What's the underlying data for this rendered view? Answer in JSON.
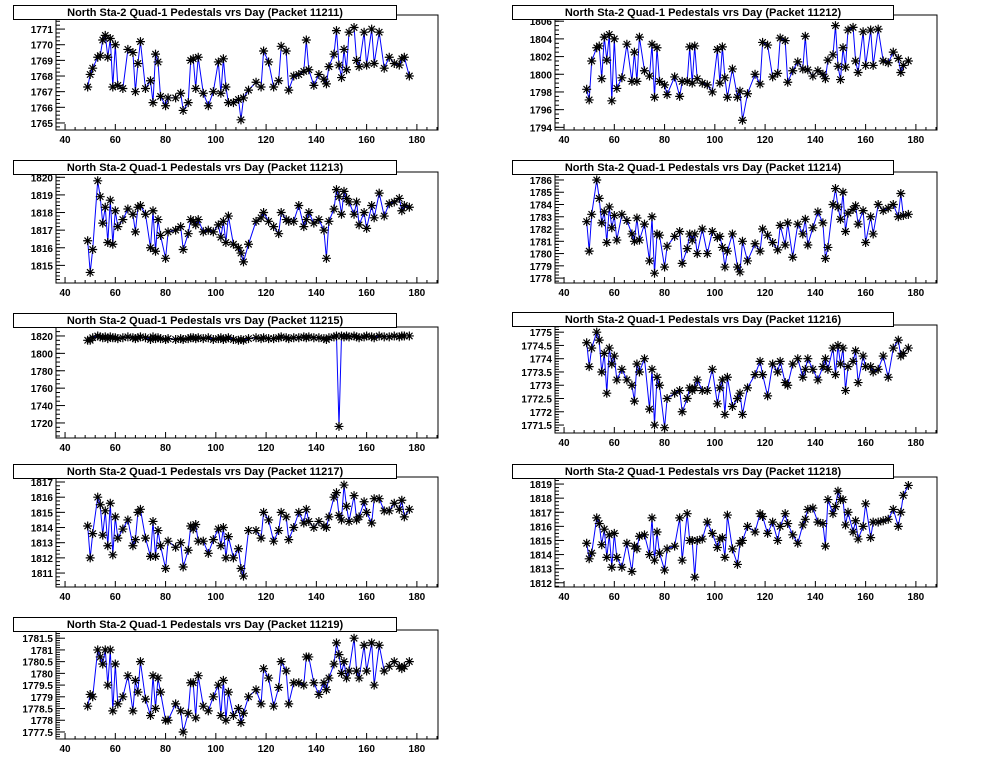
{
  "chart_data": [
    {
      "type": "line",
      "title": "North Sta-2 Quad-1 Pedestals vrs Day (Packet 11211)",
      "xlabel": "",
      "ylabel": "",
      "xlim": [
        36.4,
        188.4
      ],
      "ylim": [
        1764.55,
        1771.9
      ],
      "xticks": [
        40,
        60,
        80,
        100,
        120,
        140,
        160,
        180
      ],
      "yticks": [
        1765,
        1766,
        1767,
        1768,
        1769,
        1770,
        1771
      ],
      "yminor": 0.25,
      "y": [
        1767.3,
        1768.1,
        1768.5,
        1769.2,
        1769.3,
        1770.3,
        1770.6,
        1769.2,
        1770.4,
        1767.3,
        1770.0,
        1767.4,
        1767.2,
        1769.7,
        1769.5,
        1767.0,
        1768.8,
        1770.2,
        1767.2,
        1767.7,
        1766.3,
        1769.4,
        1768.9,
        1766.7,
        1766.1,
        1766.6,
        1766.6,
        1766.9,
        1765.8,
        1766.3,
        1769.0,
        1769.1,
        1767.2,
        1769.2,
        1766.9,
        1766.1,
        1767.0,
        1768.9,
        1766.9,
        1769.1,
        1767.3,
        1766.3,
        1766.3,
        1766.5,
        1765.2,
        1766.6,
        1767.1,
        1767.6,
        1767.3,
        1769.6,
        1768.9,
        1767.3,
        1767.7,
        1769.9,
        1769.6,
        1767.1,
        1768.0,
        1768.1,
        1768.3,
        1770.3,
        1768.4,
        1767.4,
        1768.1,
        1767.8,
        1767.5,
        1768.6,
        1769.4,
        1770.9,
        1768.7,
        1767.9,
        1769.7,
        1768.4,
        1770.8,
        1771.1,
        1769.0,
        1768.6,
        1770.8,
        1768.7,
        1771.0,
        1768.8,
        1770.8,
        1768.5,
        1769.2,
        1768.8,
        1768.7,
        1769.1,
        1769.2,
        1768.0
      ]
    },
    {
      "type": "line",
      "title": "North Sta-2 Quad-1 Pedestals vrs Day (Packet 11212)",
      "xlabel": "",
      "ylabel": "",
      "xlim": [
        36.4,
        188.4
      ],
      "ylim": [
        1793.7,
        1806.7
      ],
      "xticks": [
        40,
        60,
        80,
        100,
        120,
        140,
        160,
        180
      ],
      "yticks": [
        1794,
        1796,
        1798,
        1800,
        1802,
        1804,
        1806
      ],
      "yminor": 0.5,
      "y": [
        1798.3,
        1797.1,
        1801.5,
        1803.0,
        1803.2,
        1799.5,
        1804.2,
        1801.6,
        1804.5,
        1797.0,
        1804.0,
        1798.4,
        1799.6,
        1803.4,
        1799.2,
        1802.5,
        1799.2,
        1804.2,
        1800.4,
        1799.8,
        1803.4,
        1797.4,
        1803.0,
        1799.2,
        1798.8,
        1797.7,
        1799.7,
        1797.5,
        1799.2,
        1799.2,
        1803.1,
        1799.0,
        1803.2,
        1799.5,
        1799.0,
        1798.8,
        1798.0,
        1802.8,
        1799.0,
        1803.1,
        1799.6,
        1797.4,
        1800.6,
        1797.4,
        1798.1,
        1794.8,
        1797.8,
        1800.0,
        1798.9,
        1803.6,
        1803.3,
        1799.7,
        1800.1,
        1804.1,
        1803.8,
        1799.1,
        1800.4,
        1801.4,
        1800.6,
        1804.3,
        1800.5,
        1799.8,
        1800.4,
        1800.0,
        1799.5,
        1801.6,
        1802.2,
        1805.5,
        1800.9,
        1799.4,
        1803.0,
        1800.8,
        1805.0,
        1805.3,
        1801.5,
        1800.2,
        1804.8,
        1801.0,
        1805.0,
        1801.0,
        1805.1,
        1801.5,
        1801.3,
        1802.5,
        1801.8,
        1800.2,
        1801.0,
        1801.5
      ]
    },
    {
      "type": "line",
      "title": "North Sta-2 Quad-1 Pedestals vrs Day (Packet 11213)",
      "xlabel": "",
      "ylabel": "",
      "xlim": [
        36.4,
        188.4
      ],
      "ylim": [
        1814.0,
        1820.3
      ],
      "xticks": [
        40,
        60,
        80,
        100,
        120,
        140,
        160,
        180
      ],
      "yticks": [
        1815,
        1816,
        1817,
        1818,
        1819,
        1820
      ],
      "yminor": 0.2,
      "y": [
        1816.4,
        1814.6,
        1815.9,
        1819.8,
        1818.9,
        1817.4,
        1818.3,
        1816.3,
        1818.7,
        1816.2,
        1818.1,
        1817.2,
        1817.6,
        1818.2,
        1817.9,
        1816.9,
        1818.3,
        1818.4,
        1817.9,
        1816.0,
        1818.1,
        1815.8,
        1817.6,
        1816.7,
        1815.4,
        1816.9,
        1817.0,
        1817.2,
        1815.9,
        1816.8,
        1817.6,
        1817.5,
        1817.3,
        1817.6,
        1816.9,
        1817.0,
        1816.9,
        1817.3,
        1816.6,
        1817.5,
        1816.3,
        1817.8,
        1816.2,
        1816.0,
        1815.7,
        1815.2,
        1816.2,
        1817.5,
        1817.7,
        1818.0,
        1817.5,
        1817.2,
        1816.8,
        1818.0,
        1817.6,
        1817.5,
        1817.5,
        1818.4,
        1817.2,
        1817.6,
        1818.0,
        1817.4,
        1817.6,
        1817.0,
        1815.4,
        1817.5,
        1818.2,
        1819.3,
        1818.9,
        1817.9,
        1819.2,
        1818.8,
        1818.6,
        1817.9,
        1818.6,
        1817.3,
        1818.0,
        1817.1,
        1818.4,
        1817.7,
        1819.1,
        1817.8,
        1818.5,
        1818.6,
        1818.8,
        1818.1,
        1818.4,
        1818.3
      ]
    },
    {
      "type": "line",
      "title": "North Sta-2 Quad-1 Pedestals vrs Day (Packet 11214)",
      "xlabel": "",
      "ylabel": "",
      "xlim": [
        36.4,
        188.4
      ],
      "ylim": [
        1777.6,
        1786.65
      ],
      "xticks": [
        40,
        60,
        80,
        100,
        120,
        140,
        160,
        180
      ],
      "yticks": [
        1778,
        1779,
        1780,
        1781,
        1782,
        1783,
        1784,
        1785,
        1786
      ],
      "yminor": 0.25,
      "y": [
        1782.6,
        1780.2,
        1783.2,
        1786.0,
        1784.5,
        1782.5,
        1783.4,
        1780.9,
        1783.8,
        1782.1,
        1783.1,
        1781.1,
        1783.2,
        1782.7,
        1781.6,
        1781.0,
        1782.9,
        1781.1,
        1782.4,
        1779.4,
        1783.0,
        1778.4,
        1781.6,
        1781.5,
        1778.9,
        1780.6,
        1781.4,
        1781.8,
        1779.2,
        1780.4,
        1781.6,
        1781.1,
        1781.6,
        1780.0,
        1782.0,
        1780.0,
        1781.8,
        1781.3,
        1781.4,
        1780.5,
        1778.9,
        1780.2,
        1781.6,
        1778.9,
        1778.5,
        1781.0,
        1779.4,
        1780.8,
        1780.2,
        1782.0,
        1781.5,
        1780.9,
        1780.3,
        1782.3,
        1780.7,
        1782.5,
        1779.7,
        1782.4,
        1781.6,
        1782.8,
        1780.7,
        1782.1,
        1783.4,
        1782.5,
        1779.6,
        1780.5,
        1784.0,
        1785.3,
        1783.8,
        1782.8,
        1785.0,
        1781.8,
        1783.3,
        1783.6,
        1783.9,
        1782.4,
        1783.5,
        1780.9,
        1783.0,
        1781.6,
        1784.0,
        1783.5,
        1783.7,
        1784.0,
        1783.0,
        1784.9,
        1783.1,
        1783.2
      ]
    },
    {
      "type": "line",
      "title": "North Sta-2 Quad-1 Pedestals vrs Day (Packet 11215)",
      "xlabel": "",
      "ylabel": "",
      "xlim": [
        36.4,
        188.4
      ],
      "ylim": [
        1702.7,
        1830.3
      ],
      "xticks": [
        40,
        60,
        80,
        100,
        120,
        140,
        160,
        180
      ],
      "yticks": [
        1720,
        1740,
        1760,
        1780,
        1800,
        1820
      ],
      "yminor": 5,
      "y": [
        1815,
        1815,
        1818,
        1820,
        1819,
        1818,
        1819,
        1817,
        1819,
        1818,
        1818,
        1817,
        1818,
        1819,
        1818,
        1817,
        1818,
        1819,
        1818,
        1816,
        1819,
        1817,
        1818,
        1817,
        1816,
        1817,
        1816,
        1817,
        1816,
        1817,
        1818,
        1818,
        1817,
        1818,
        1817,
        1818,
        1816,
        1817,
        1818,
        1816,
        1817,
        1818,
        1816,
        1815,
        1816,
        1815,
        1817,
        1818,
        1817,
        1818,
        1817,
        1817,
        1818,
        1819,
        1818,
        1817,
        1818,
        1818,
        1819,
        1818,
        1819,
        1818,
        1818,
        1817,
        1816,
        1818,
        1819,
        1820,
        1716,
        1820,
        1819,
        1820,
        1819,
        1820,
        1819,
        1818,
        1819,
        1820,
        1819,
        1818,
        1820,
        1819,
        1819,
        1820,
        1819,
        1820,
        1820,
        1820
      ]
    },
    {
      "type": "line",
      "title": "North Sta-2 Quad-1 Pedestals vrs Day (Packet 11216)",
      "xlabel": "",
      "ylabel": "",
      "xlim": [
        36.4,
        188.4
      ],
      "ylim": [
        1771.2,
        1775.27
      ],
      "xticks": [
        40,
        60,
        80,
        100,
        120,
        140,
        160,
        180
      ],
      "yticks": [
        1771.5,
        1772,
        1772.5,
        1773,
        1773.5,
        1774,
        1774.5,
        1775
      ],
      "yminor": 0.1,
      "y": [
        1774.6,
        1773.7,
        1774.4,
        1775.0,
        1774.7,
        1773.5,
        1774.2,
        1772.7,
        1774.4,
        1773.8,
        1774.1,
        1773.2,
        1773.6,
        1773.2,
        1773.0,
        1772.4,
        1773.8,
        1773.5,
        1774.0,
        1772.1,
        1773.6,
        1771.5,
        1773.3,
        1773.0,
        1771.4,
        1772.5,
        1772.7,
        1772.8,
        1772.0,
        1772.5,
        1772.9,
        1772.8,
        1772.9,
        1773.2,
        1772.8,
        1772.8,
        1773.6,
        1772.3,
        1772.9,
        1773.2,
        1771.9,
        1773.3,
        1772.2,
        1772.5,
        1772.7,
        1771.9,
        1772.9,
        1773.4,
        1773.9,
        1773.4,
        1772.6,
        1773.8,
        1773.5,
        1773.9,
        1773.1,
        1773.0,
        1773.8,
        1774.0,
        1773.3,
        1773.6,
        1774.0,
        1773.6,
        1773.2,
        1773.7,
        1774.0,
        1773.6,
        1774.4,
        1773.4,
        1774.5,
        1773.8,
        1774.4,
        1772.8,
        1773.7,
        1773.9,
        1774.3,
        1773.1,
        1774.1,
        1773.7,
        1773.7,
        1773.5,
        1773.6,
        1774.1,
        1773.3,
        1774.4,
        1774.7,
        1774.1,
        1774.2,
        1774.4
      ]
    },
    {
      "type": "line",
      "title": "North Sta-2 Quad-1 Pedestals vrs Day (Packet 11217)",
      "xlabel": "",
      "ylabel": "",
      "xlim": [
        36.4,
        188.4
      ],
      "ylim": [
        1810.08,
        1817.33
      ],
      "xticks": [
        40,
        60,
        80,
        100,
        120,
        140,
        160,
        180
      ],
      "yticks": [
        1811,
        1812,
        1813,
        1814,
        1815,
        1816,
        1817
      ],
      "yminor": 0.25,
      "y": [
        1814.1,
        1812.0,
        1813.6,
        1816.0,
        1815.5,
        1813.5,
        1815.1,
        1812.8,
        1815.6,
        1812.2,
        1814.7,
        1813.3,
        1813.9,
        1814.5,
        1812.8,
        1813.2,
        1815.0,
        1815.2,
        1813.3,
        1812.1,
        1814.4,
        1812.1,
        1813.8,
        1812.8,
        1811.3,
        1813.1,
        1812.7,
        1813.0,
        1811.4,
        1812.5,
        1814.1,
        1813.9,
        1814.2,
        1813.1,
        1813.1,
        1812.3,
        1813.2,
        1813.9,
        1812.8,
        1814.0,
        1812.0,
        1813.4,
        1812.0,
        1812.6,
        1811.3,
        1810.8,
        1813.8,
        1813.8,
        1813.3,
        1815.0,
        1814.5,
        1813.1,
        1813.8,
        1815.0,
        1814.7,
        1813.2,
        1814.0,
        1815.0,
        1814.3,
        1815.2,
        1814.4,
        1814.0,
        1814.4,
        1814.1,
        1814.0,
        1814.7,
        1816.0,
        1816.3,
        1814.8,
        1814.5,
        1816.8,
        1815.4,
        1814.4,
        1816.1,
        1814.5,
        1814.7,
        1815.7,
        1815.0,
        1814.3,
        1815.9,
        1815.9,
        1815.1,
        1815.1,
        1815.6,
        1815.2,
        1815.8,
        1814.7,
        1815.2
      ]
    },
    {
      "type": "line",
      "title": "North Sta-2 Quad-1 Pedestals vrs Day (Packet 11218)",
      "xlabel": "",
      "ylabel": "",
      "xlim": [
        36.4,
        188.4
      ],
      "ylim": [
        1811.7,
        1819.5
      ],
      "xticks": [
        40,
        60,
        80,
        100,
        120,
        140,
        160,
        180
      ],
      "yticks": [
        1812,
        1813,
        1814,
        1815,
        1816,
        1817,
        1818,
        1819
      ],
      "yminor": 0.25,
      "y": [
        1814.8,
        1813.7,
        1814.1,
        1816.6,
        1816.2,
        1814.7,
        1815.8,
        1813.8,
        1815.4,
        1813.1,
        1815.5,
        1813.8,
        1813.1,
        1814.8,
        1812.8,
        1814.6,
        1814.4,
        1815.3,
        1815.4,
        1814.0,
        1816.6,
        1813.6,
        1815.6,
        1814.1,
        1812.9,
        1814.4,
        1814.6,
        1816.6,
        1813.6,
        1816.9,
        1815.0,
        1815.0,
        1812.4,
        1815.0,
        1815.1,
        1816.3,
        1815.5,
        1814.5,
        1815.1,
        1815.2,
        1813.8,
        1816.8,
        1814.4,
        1813.3,
        1814.8,
        1815.0,
        1816.0,
        1815.6,
        1816.9,
        1816.7,
        1815.5,
        1816.3,
        1815.0,
        1816.0,
        1816.9,
        1816.2,
        1815.4,
        1814.8,
        1816.1,
        1816.5,
        1817.2,
        1817.3,
        1816.3,
        1816.2,
        1814.6,
        1817.9,
        1816.9,
        1817.4,
        1818.5,
        1817.9,
        1817.9,
        1816.1,
        1817.0,
        1815.6,
        1816.4,
        1815.1,
        1816.0,
        1817.6,
        1815.2,
        1816.3,
        1816.3,
        1816.4,
        1816.5,
        1817.2,
        1816.0,
        1817.0,
        1818.2,
        1818.9
      ]
    },
    {
      "type": "line",
      "title": "North Sta-2 Quad-1 Pedestals vrs Day (Packet 11219)",
      "xlabel": "",
      "ylabel": "",
      "xlim": [
        36.4,
        188.4
      ],
      "ylim": [
        1777.2,
        1781.85
      ],
      "xticks": [
        40,
        60,
        80,
        100,
        120,
        140,
        160,
        180
      ],
      "yticks": [
        1777.5,
        1778,
        1778.5,
        1779,
        1779.5,
        1780,
        1780.5,
        1781,
        1781.5
      ],
      "yminor": 0.1,
      "y": [
        1778.6,
        1779.1,
        1779.0,
        1781.0,
        1780.7,
        1780.4,
        1781.0,
        1779.5,
        1781.0,
        1778.4,
        1780.4,
        1778.7,
        1779.0,
        1779.9,
        1778.4,
        1779.7,
        1779.2,
        1780.5,
        1778.9,
        1778.2,
        1779.9,
        1778.5,
        1779.8,
        1779.2,
        1778.0,
        1778.0,
        1778.7,
        1778.4,
        1777.5,
        1778.3,
        1779.6,
        1779.6,
        1778.1,
        1779.9,
        1778.6,
        1778.4,
        1779.0,
        1779.5,
        1778.2,
        1779.7,
        1778.0,
        1779.2,
        1778.2,
        1778.5,
        1777.9,
        1778.3,
        1779.0,
        1779.3,
        1778.7,
        1780.2,
        1779.8,
        1778.6,
        1779.4,
        1780.5,
        1780.1,
        1778.7,
        1779.6,
        1779.6,
        1779.5,
        1780.7,
        1780.7,
        1779.6,
        1779.1,
        1779.6,
        1779.3,
        1779.8,
        1780.4,
        1781.3,
        1780.8,
        1780.0,
        1780.5,
        1779.8,
        1780.1,
        1781.5,
        1780.1,
        1779.8,
        1781.2,
        1780.1,
        1781.3,
        1779.5,
        1781.2,
        1780.1,
        1780.3,
        1780.5,
        1780.3,
        1780.2,
        1780.3,
        1780.5
      ]
    }
  ],
  "x_days": [
    49,
    50,
    51,
    53,
    54,
    55,
    56,
    57,
    58,
    59,
    60,
    61,
    63,
    65,
    67,
    68,
    69,
    70,
    72,
    74,
    75,
    76,
    77,
    78,
    80,
    81,
    84,
    86,
    87,
    89,
    90,
    91,
    92,
    93,
    95,
    97,
    99,
    101,
    102,
    103,
    104,
    105,
    107,
    109,
    110,
    111,
    113,
    116,
    118,
    119,
    121,
    123,
    125,
    126,
    128,
    129,
    131,
    133,
    135,
    136,
    137,
    139,
    141,
    143,
    144,
    145,
    147,
    148,
    149,
    150,
    151,
    152,
    153,
    155,
    156,
    157,
    159,
    160,
    162,
    163,
    165,
    167,
    169,
    171,
    173,
    174,
    175,
    177
  ],
  "colors": {
    "line": "#0000ff",
    "marker": "#000000",
    "frame": "#000000"
  }
}
